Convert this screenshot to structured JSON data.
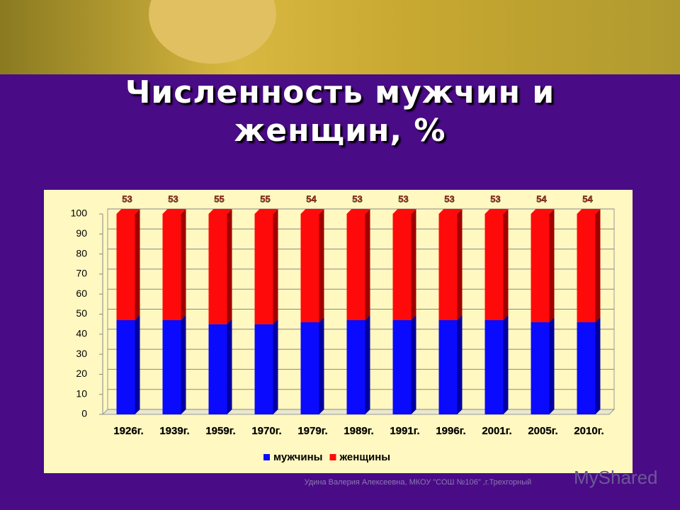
{
  "chart_data": {
    "type": "stacked_bar",
    "title": "Численность мужчин и женщин, %",
    "categories": [
      "1926г.",
      "1939г.",
      "1959г.",
      "1970г.",
      "1979г.",
      "1989г.",
      "1991г.",
      "1996г.",
      "2001г.",
      "2005г.",
      "2010г."
    ],
    "series": [
      {
        "name": "мужчины",
        "color": "#0a0aff",
        "values": [
          47,
          47,
          45,
          45,
          46,
          47,
          47,
          47,
          47,
          46,
          46
        ]
      },
      {
        "name": "женщины",
        "color": "#ff0a0a",
        "values": [
          53,
          53,
          55,
          55,
          54,
          53,
          53,
          53,
          53,
          54,
          54
        ]
      }
    ],
    "ylim": [
      0,
      100
    ],
    "yticks": [
      0,
      10,
      20,
      30,
      40,
      50,
      60,
      70,
      80,
      90,
      100
    ],
    "grid": true,
    "legend": "bottom",
    "footer": "Удина Валерия Алексеевна, МКОУ \"СОШ №106\" ,г.Трехгорный",
    "logo": "MyShared"
  }
}
